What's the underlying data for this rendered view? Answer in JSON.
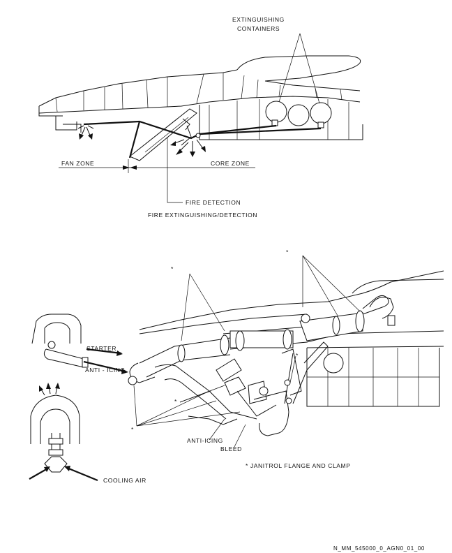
{
  "labels": {
    "extinguishing_containers_1": "EXTINGUISHING",
    "extinguishing_containers_2": "CONTAINERS",
    "fan_zone": "FAN ZONE",
    "core_zone": "CORE ZONE",
    "fire_detection": "FIRE DETECTION",
    "section_title": "FIRE EXTINGUISHING/DETECTION",
    "starter": "STARTER",
    "anti_icing": "ANTI - ICING",
    "anti_icing_bleed_1": "ANTI-ICING",
    "anti_icing_bleed_2": "BLEED",
    "note": "* JANITROL FLANGE AND CLAMP",
    "cooling_air": "COOLING AIR",
    "asterisk": "*",
    "figure_id": "N_MM_545000_0_AGN0_01_00"
  }
}
